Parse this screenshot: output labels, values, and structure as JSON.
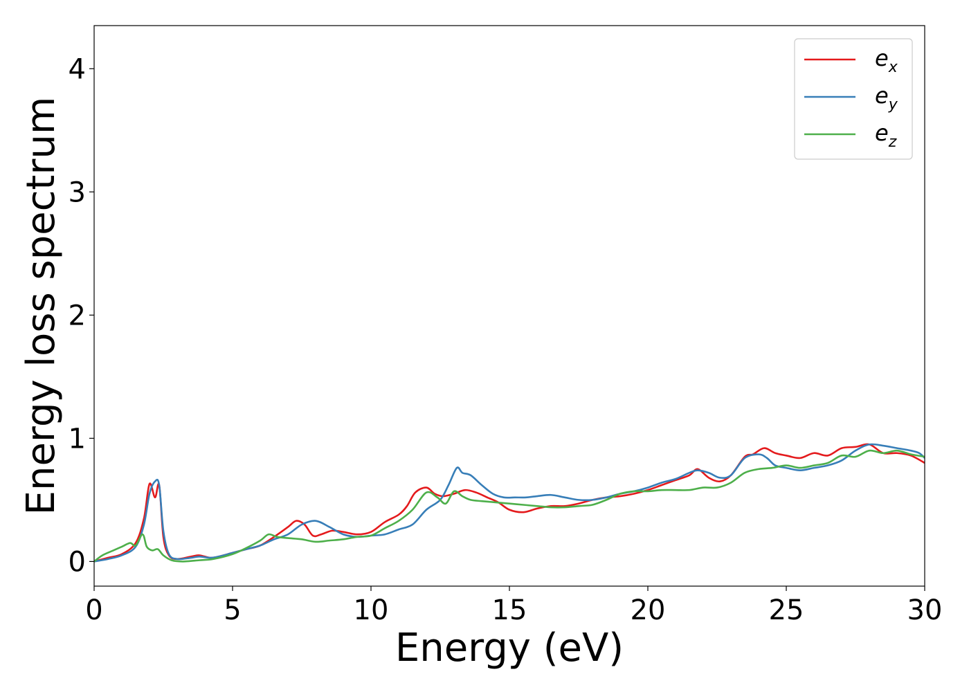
{
  "chart_data": {
    "type": "line",
    "title": "",
    "xlabel": "Energy (eV)",
    "ylabel": "Energy loss spectrum",
    "xlim": [
      0,
      30
    ],
    "ylim": [
      -0.2,
      4.35
    ],
    "xticks": [
      0,
      5,
      10,
      15,
      20,
      25,
      30
    ],
    "yticks": [
      0,
      1,
      2,
      3,
      4
    ],
    "grid": false,
    "legend_position": "top-right",
    "series": [
      {
        "name": "e_x",
        "legend_main": "e",
        "legend_sub": "x",
        "color": "#e41a1c",
        "x": [
          0,
          0.5,
          1,
          1.5,
          1.8,
          2.0,
          2.2,
          2.35,
          2.5,
          2.7,
          3.0,
          3.5,
          3.8,
          4.2,
          4.5,
          5,
          5.5,
          6,
          6.5,
          7,
          7.3,
          7.6,
          7.9,
          8.2,
          8.6,
          9.0,
          9.5,
          10,
          10.5,
          11,
          11.3,
          11.6,
          12.0,
          12.3,
          12.6,
          13.0,
          13.4,
          13.8,
          14.2,
          14.6,
          15.0,
          15.5,
          16.0,
          16.5,
          17.0,
          17.5,
          18.0,
          18.5,
          19.0,
          19.5,
          20.0,
          20.5,
          21.0,
          21.5,
          21.8,
          22.2,
          22.6,
          23.0,
          23.5,
          23.8,
          24.2,
          24.6,
          25.0,
          25.5,
          26.0,
          26.5,
          27.0,
          27.5,
          28.0,
          28.5,
          29.0,
          29.5,
          30.0
        ],
        "y": [
          0.0,
          0.03,
          0.06,
          0.15,
          0.35,
          0.63,
          0.52,
          0.62,
          0.2,
          0.05,
          0.02,
          0.04,
          0.05,
          0.03,
          0.04,
          0.07,
          0.1,
          0.13,
          0.2,
          0.28,
          0.33,
          0.3,
          0.21,
          0.22,
          0.25,
          0.24,
          0.22,
          0.24,
          0.32,
          0.38,
          0.45,
          0.56,
          0.6,
          0.55,
          0.53,
          0.55,
          0.58,
          0.56,
          0.52,
          0.48,
          0.42,
          0.4,
          0.43,
          0.45,
          0.45,
          0.47,
          0.5,
          0.52,
          0.53,
          0.55,
          0.58,
          0.62,
          0.66,
          0.7,
          0.75,
          0.68,
          0.65,
          0.7,
          0.85,
          0.87,
          0.92,
          0.88,
          0.86,
          0.84,
          0.88,
          0.86,
          0.92,
          0.93,
          0.95,
          0.88,
          0.88,
          0.86,
          0.8
        ]
      },
      {
        "name": "e_y",
        "legend_main": "e",
        "legend_sub": "y",
        "color": "#377eb8",
        "x": [
          0,
          0.5,
          1,
          1.5,
          1.8,
          2.0,
          2.2,
          2.35,
          2.5,
          2.7,
          3.0,
          3.5,
          3.8,
          4.2,
          4.5,
          5,
          5.5,
          6,
          6.5,
          7,
          7.5,
          8.0,
          8.5,
          9.0,
          9.5,
          10,
          10.5,
          11,
          11.5,
          12.0,
          12.5,
          12.8,
          13.1,
          13.3,
          13.6,
          14.0,
          14.4,
          14.8,
          15.2,
          15.6,
          16.0,
          16.5,
          17.0,
          17.5,
          18.0,
          18.5,
          19.0,
          19.5,
          20.0,
          20.5,
          21.0,
          21.5,
          21.8,
          22.2,
          22.6,
          23.0,
          23.5,
          24.0,
          24.3,
          24.6,
          25.0,
          25.5,
          26.0,
          26.5,
          27.0,
          27.5,
          28.0,
          28.5,
          29.0,
          29.5,
          29.8,
          30.0
        ],
        "y": [
          0.0,
          0.02,
          0.05,
          0.12,
          0.3,
          0.55,
          0.65,
          0.62,
          0.25,
          0.06,
          0.02,
          0.03,
          0.04,
          0.03,
          0.04,
          0.07,
          0.1,
          0.13,
          0.18,
          0.22,
          0.3,
          0.33,
          0.28,
          0.22,
          0.2,
          0.21,
          0.22,
          0.26,
          0.3,
          0.42,
          0.5,
          0.62,
          0.76,
          0.72,
          0.7,
          0.62,
          0.55,
          0.52,
          0.52,
          0.52,
          0.53,
          0.54,
          0.52,
          0.5,
          0.5,
          0.52,
          0.55,
          0.57,
          0.6,
          0.64,
          0.67,
          0.72,
          0.74,
          0.72,
          0.68,
          0.7,
          0.84,
          0.87,
          0.84,
          0.78,
          0.76,
          0.74,
          0.76,
          0.78,
          0.82,
          0.9,
          0.95,
          0.94,
          0.92,
          0.9,
          0.88,
          0.84
        ]
      },
      {
        "name": "e_z",
        "legend_main": "e",
        "legend_sub": "z",
        "color": "#4daf4a",
        "x": [
          0,
          0.3,
          0.7,
          1.0,
          1.3,
          1.5,
          1.75,
          1.9,
          2.1,
          2.3,
          2.5,
          2.8,
          3.2,
          3.8,
          4.3,
          5,
          5.5,
          6.0,
          6.3,
          6.6,
          7.0,
          7.5,
          8.0,
          8.5,
          9.0,
          9.5,
          10,
          10.5,
          11,
          11.5,
          12.0,
          12.4,
          12.7,
          13.0,
          13.3,
          13.6,
          14.0,
          14.5,
          15.0,
          15.5,
          16.0,
          16.5,
          17.0,
          17.5,
          18.0,
          18.5,
          19.0,
          19.5,
          20.0,
          20.5,
          21.0,
          21.5,
          22.0,
          22.5,
          23.0,
          23.5,
          24.0,
          24.5,
          25.0,
          25.5,
          26.0,
          26.5,
          27.0,
          27.5,
          28.0,
          28.5,
          29.0,
          29.5,
          30.0
        ],
        "y": [
          0.0,
          0.05,
          0.09,
          0.12,
          0.15,
          0.13,
          0.22,
          0.12,
          0.09,
          0.1,
          0.05,
          0.01,
          0.0,
          0.01,
          0.02,
          0.06,
          0.11,
          0.17,
          0.22,
          0.2,
          0.19,
          0.18,
          0.16,
          0.17,
          0.18,
          0.2,
          0.21,
          0.27,
          0.33,
          0.42,
          0.56,
          0.52,
          0.47,
          0.57,
          0.53,
          0.5,
          0.49,
          0.48,
          0.47,
          0.46,
          0.45,
          0.44,
          0.44,
          0.45,
          0.46,
          0.5,
          0.55,
          0.57,
          0.57,
          0.58,
          0.58,
          0.58,
          0.6,
          0.6,
          0.64,
          0.72,
          0.75,
          0.76,
          0.78,
          0.76,
          0.78,
          0.8,
          0.86,
          0.85,
          0.9,
          0.88,
          0.9,
          0.87,
          0.85
        ]
      }
    ]
  }
}
